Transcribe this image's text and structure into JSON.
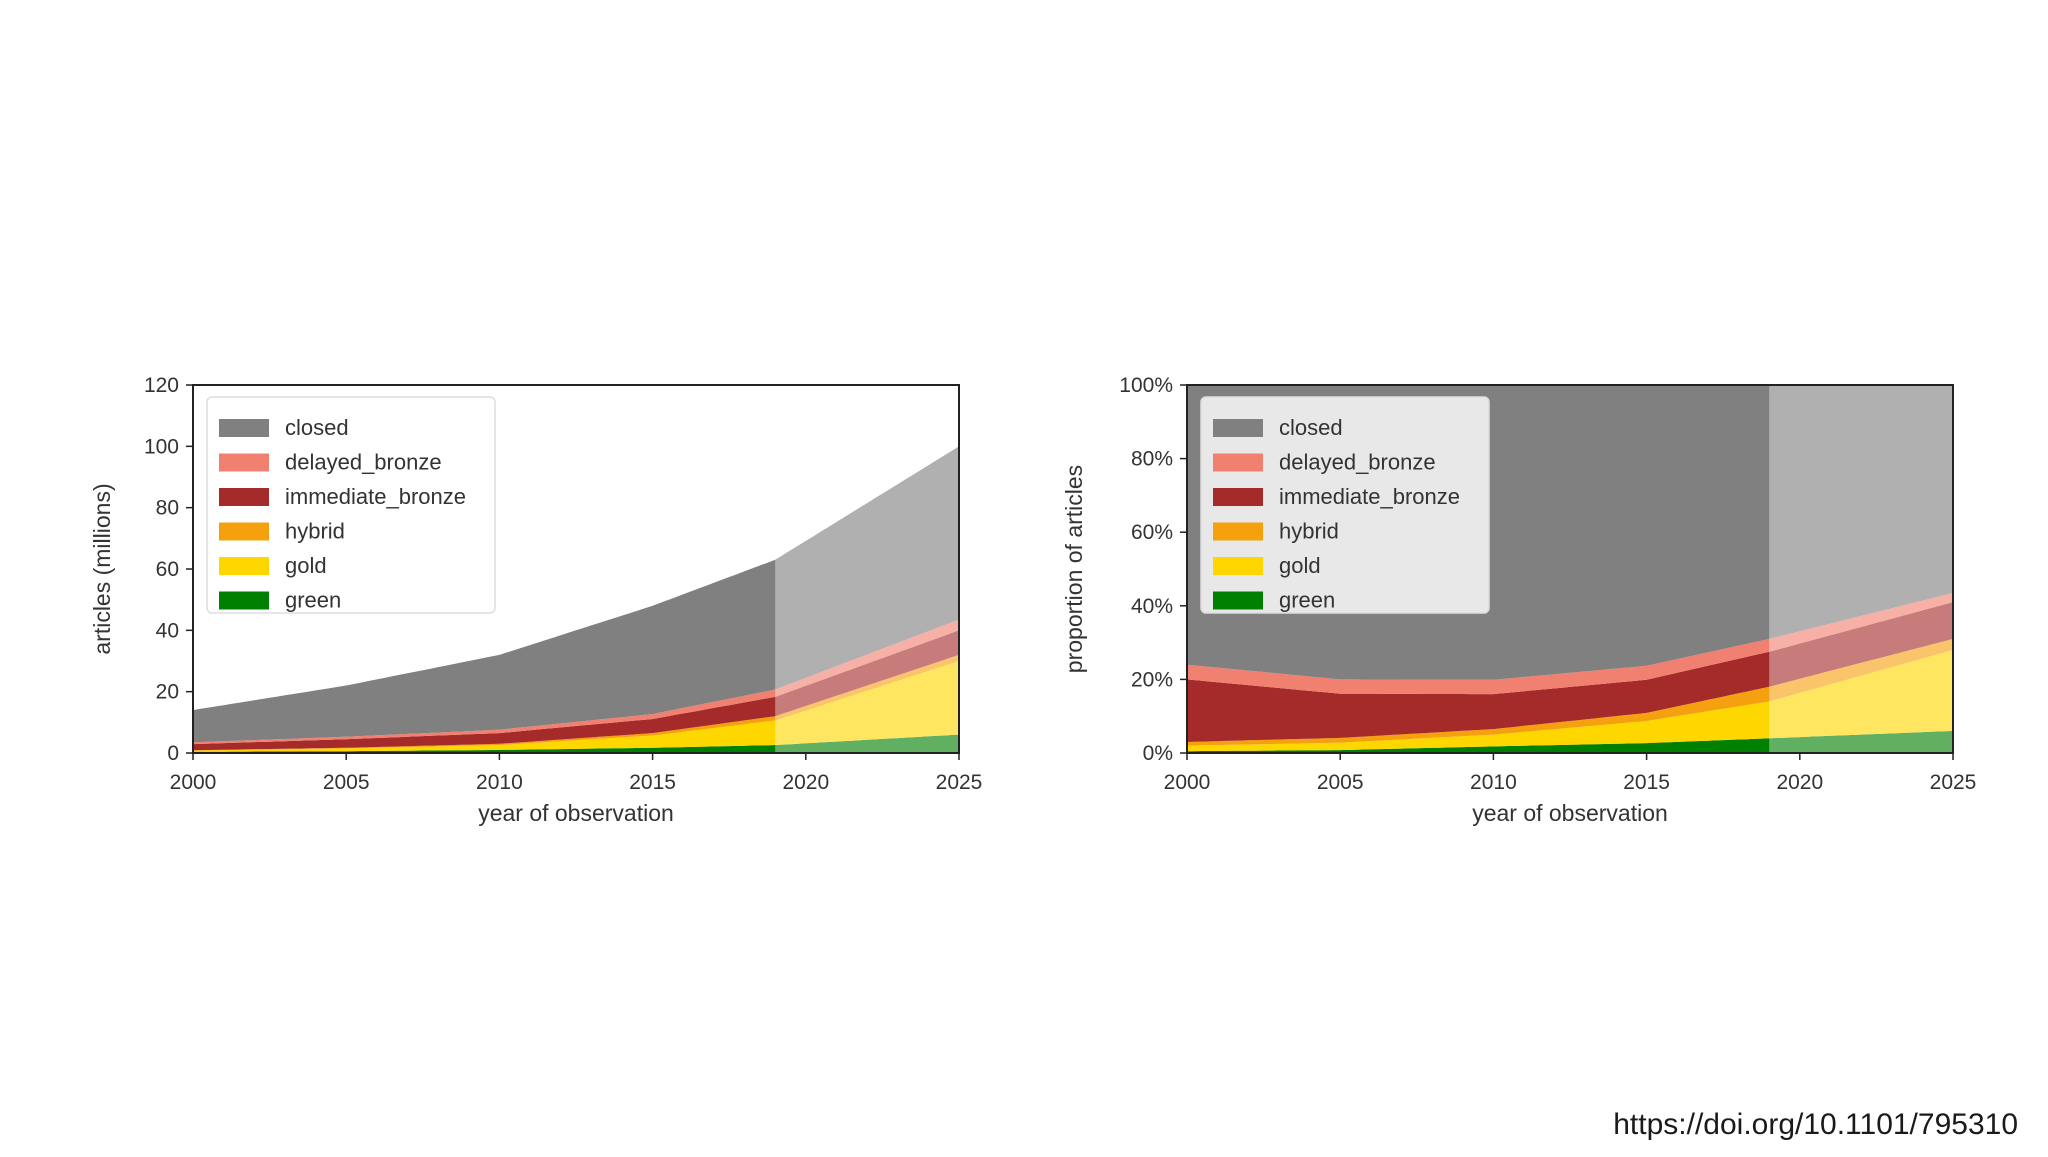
{
  "source_link": "https://doi.org/10.1101/795310",
  "colors": {
    "closed": "#808080",
    "delayed_bronze": "#f08070",
    "immediate_bronze": "#a52a2a",
    "hybrid": "#f5a00f",
    "gold": "#ffd700",
    "green": "#008000",
    "projection_overlay": "#ffffff"
  },
  "chart_data": [
    {
      "type": "area",
      "stacked": true,
      "xlabel": "year of observation",
      "ylabel": "articles (millions)",
      "xlim": [
        2000,
        2025
      ],
      "ylim": [
        0,
        120
      ],
      "xticks": [
        "2000",
        "2005",
        "2010",
        "2015",
        "2020",
        "2025"
      ],
      "yticks": [
        "0",
        "20",
        "40",
        "60",
        "80",
        "100",
        "120"
      ],
      "grid": false,
      "legend": "top-left",
      "projection_start": 2019,
      "x": [
        2000,
        2005,
        2010,
        2015,
        2019,
        2025
      ],
      "series": [
        {
          "name": "green",
          "values": [
            0.4,
            0.6,
            1.0,
            1.7,
            2.6,
            6.0
          ]
        },
        {
          "name": "gold",
          "values": [
            0.4,
            0.9,
            1.6,
            4.0,
            8.0,
            24.0
          ]
        },
        {
          "name": "hybrid",
          "values": [
            0.1,
            0.2,
            0.4,
            0.8,
            1.4,
            2.0
          ]
        },
        {
          "name": "immediate_bronze",
          "values": [
            2.0,
            2.8,
            3.5,
            4.6,
            6.3,
            8.0
          ]
        },
        {
          "name": "delayed_bronze",
          "values": [
            0.6,
            0.8,
            1.1,
            1.6,
            2.4,
            3.5
          ]
        },
        {
          "name": "closed",
          "values": [
            10.5,
            16.7,
            24.4,
            35.3,
            42.3,
            56.5
          ]
        }
      ]
    },
    {
      "type": "area",
      "stacked": true,
      "xlabel": "year of observation",
      "ylabel": "proportion of articles",
      "xlim": [
        2000,
        2025
      ],
      "ylim": [
        0,
        100
      ],
      "xticks": [
        "2000",
        "2005",
        "2010",
        "2015",
        "2020",
        "2025"
      ],
      "yticks": [
        "0%",
        "20%",
        "40%",
        "60%",
        "80%",
        "100%"
      ],
      "grid": false,
      "legend": "top-left",
      "projection_start": 2019,
      "x": [
        2000,
        2005,
        2010,
        2015,
        2019,
        2025
      ],
      "series": [
        {
          "name": "green",
          "values": [
            0.5,
            0.8,
            1.8,
            2.7,
            4.0,
            6.0
          ]
        },
        {
          "name": "gold",
          "values": [
            1.5,
            2.0,
            3.2,
            6.0,
            10.0,
            22.0
          ]
        },
        {
          "name": "hybrid",
          "values": [
            1.0,
            1.3,
            1.5,
            2.2,
            4.0,
            3.0
          ]
        },
        {
          "name": "immediate_bronze",
          "values": [
            17.0,
            12.0,
            9.5,
            9.0,
            9.5,
            10.0
          ]
        },
        {
          "name": "delayed_bronze",
          "values": [
            4.0,
            3.9,
            3.9,
            3.8,
            3.5,
            2.5
          ]
        },
        {
          "name": "closed",
          "values": [
            76.0,
            80.0,
            80.1,
            76.3,
            69.0,
            56.5
          ]
        }
      ]
    }
  ]
}
